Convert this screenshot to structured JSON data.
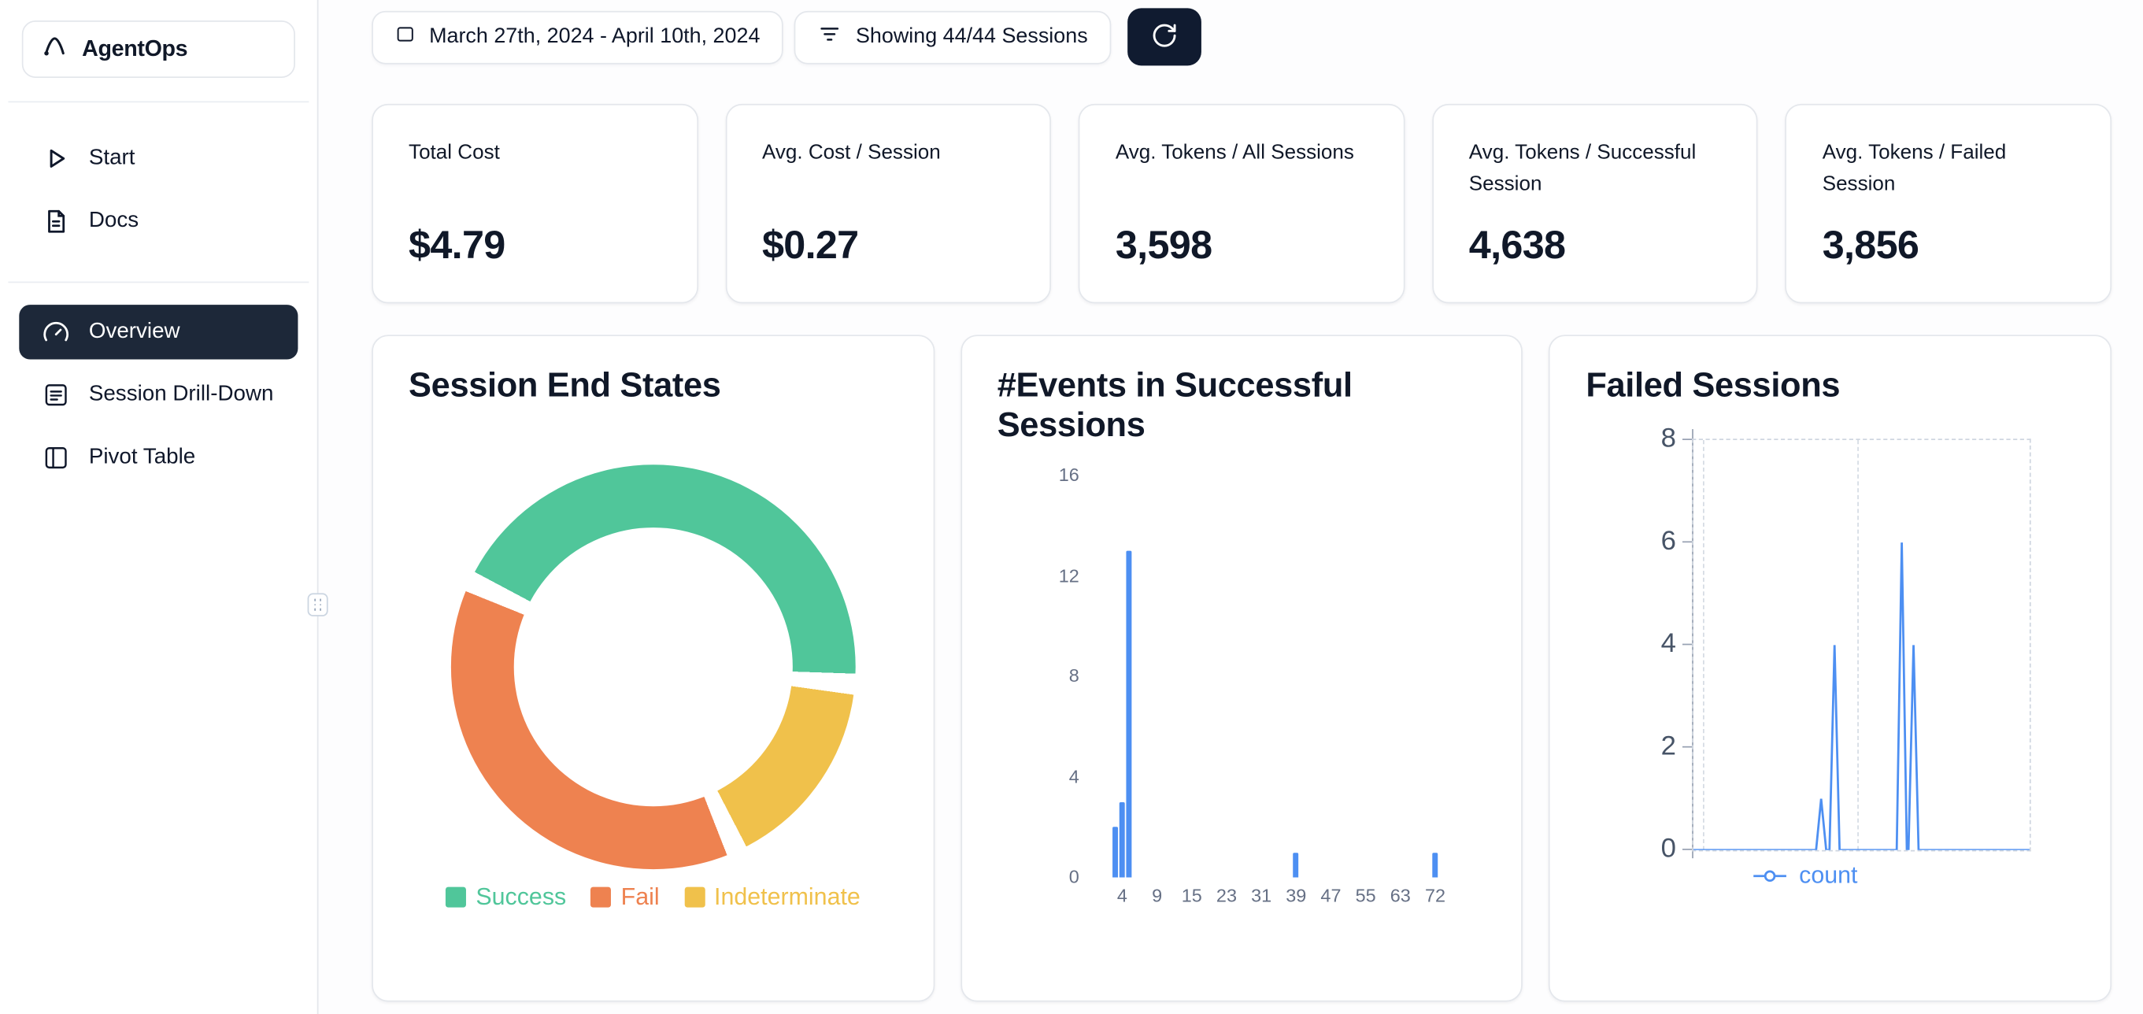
{
  "app": {
    "name": "AgentOps"
  },
  "sidebar": {
    "items": [
      {
        "label": "Start",
        "icon": "play"
      },
      {
        "label": "Docs",
        "icon": "document"
      },
      {
        "label": "Overview",
        "icon": "gauge",
        "active": true
      },
      {
        "label": "Session Drill-Down",
        "icon": "list-square"
      },
      {
        "label": "Pivot Table",
        "icon": "columns"
      }
    ]
  },
  "topbar": {
    "date_range": "March 27th, 2024 - April 10th, 2024",
    "date_icon": "calendar",
    "sessions_filter": "Showing 44/44 Sessions",
    "filter_icon": "filter-lines",
    "refresh_icon": "refresh"
  },
  "stats": [
    {
      "label": "Total Cost",
      "value": "$4.79"
    },
    {
      "label": "Avg. Cost / Session",
      "value": "$0.27"
    },
    {
      "label": "Avg. Tokens / All Sessions",
      "value": "3,598"
    },
    {
      "label": "Avg. Tokens / Successful Session",
      "value": "4,638"
    },
    {
      "label": "Avg. Tokens / Failed Session",
      "value": "3,856"
    }
  ],
  "colors": {
    "sidebar_active_bg": "#1d2839",
    "refresh_button_bg": "#101b30",
    "success_green": "#50c69a",
    "fail_orange": "#ee8250",
    "indeterminate_yellow": "#f0c14b",
    "chart_blue": "#4d8ff2"
  },
  "chart_data": [
    {
      "type": "pie",
      "donut": true,
      "title": "Session End States",
      "labels": [
        "Success",
        "Fail",
        "Indeterminate"
      ],
      "values_pct": [
        45,
        39,
        16
      ],
      "colors": [
        "#50c69a",
        "#ee8250",
        "#f0c14b"
      ],
      "ring_order": [
        0,
        2,
        1
      ],
      "start_deg": -62,
      "gap_deg": 6,
      "legend_position": "bottom"
    },
    {
      "type": "bar",
      "title": "#Events in Successful Sessions",
      "x_ticks": [
        4,
        9,
        15,
        23,
        31,
        39,
        47,
        55,
        63,
        72
      ],
      "y_ticks": [
        0,
        4,
        8,
        12,
        16
      ],
      "ylim": [
        0,
        16
      ],
      "bars": [
        {
          "events": 3,
          "count": 2
        },
        {
          "events": 4,
          "count": 3
        },
        {
          "events": 5,
          "count": 13
        },
        {
          "events": 39,
          "count": 1
        },
        {
          "events": 72,
          "count": 1
        }
      ],
      "grid": false
    },
    {
      "type": "line",
      "title": "Failed Sessions",
      "series": [
        {
          "name": "count",
          "color": "#4d8ff2"
        }
      ],
      "legend": [
        "count"
      ],
      "y_ticks": [
        0,
        2,
        4,
        6,
        8
      ],
      "ylim": [
        0,
        8
      ],
      "grid": "dashed",
      "points": [
        {
          "x": 0.0,
          "y": 0
        },
        {
          "x": 0.365,
          "y": 0
        },
        {
          "x": 0.38,
          "y": 1
        },
        {
          "x": 0.395,
          "y": 0
        },
        {
          "x": 0.405,
          "y": 0
        },
        {
          "x": 0.42,
          "y": 4
        },
        {
          "x": 0.435,
          "y": 0
        },
        {
          "x": 0.605,
          "y": 0
        },
        {
          "x": 0.62,
          "y": 6
        },
        {
          "x": 0.635,
          "y": 0
        },
        {
          "x": 0.64,
          "y": 0
        },
        {
          "x": 0.655,
          "y": 4
        },
        {
          "x": 0.67,
          "y": 0
        },
        {
          "x": 1.0,
          "y": 0
        }
      ]
    }
  ]
}
